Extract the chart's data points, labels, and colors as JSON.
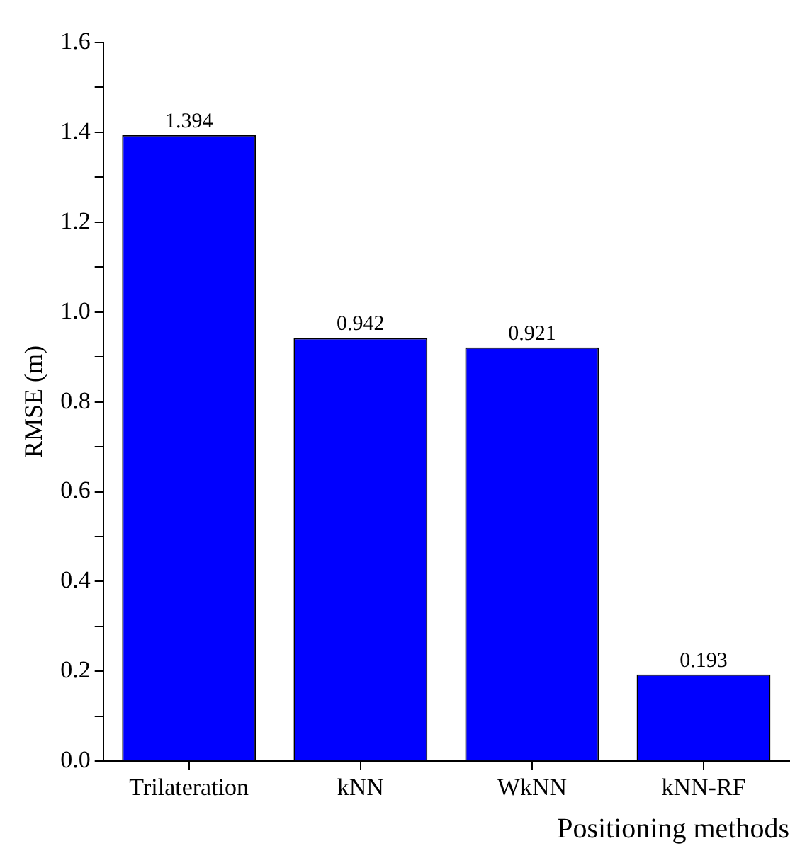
{
  "chart_data": {
    "type": "bar",
    "xlabel": "Positioning methods",
    "ylabel": "RMSE (m)",
    "categories": [
      "Trilateration",
      "kNN",
      "WkNN",
      "kNN-RF"
    ],
    "values": [
      1.394,
      0.942,
      0.921,
      0.193
    ],
    "color": "#0000ff",
    "ylim": [
      0,
      1.6
    ],
    "yticks": [
      {
        "value": 0,
        "label": "0.0"
      },
      {
        "value": 0.1,
        "label": null
      },
      {
        "value": 0.2,
        "label": "0.2"
      },
      {
        "value": 0.3,
        "label": null
      },
      {
        "value": 0.4,
        "label": "0.4"
      },
      {
        "value": 0.5,
        "label": null
      },
      {
        "value": 0.6,
        "label": "0.6"
      },
      {
        "value": 0.7,
        "label": null
      },
      {
        "value": 0.8,
        "label": "0.8"
      },
      {
        "value": 0.9,
        "label": null
      },
      {
        "value": 1.0,
        "label": "1.0"
      },
      {
        "value": 1.1,
        "label": null
      },
      {
        "value": 1.2,
        "label": "1.2"
      },
      {
        "value": 1.3,
        "label": null
      },
      {
        "value": 1.4,
        "label": "1.4"
      },
      {
        "value": 1.5,
        "label": null
      },
      {
        "value": 1.6,
        "label": "1.6"
      }
    ],
    "data_labels": true,
    "grid": false,
    "legend": false
  }
}
